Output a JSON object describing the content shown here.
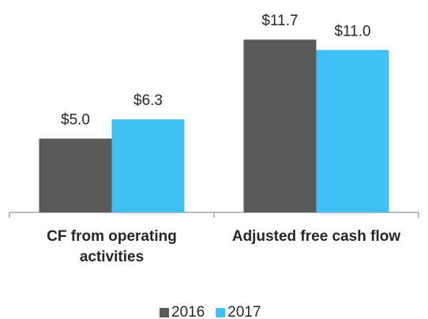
{
  "chart_data": {
    "type": "bar",
    "categories": [
      "CF from operating activities",
      "Adjusted free cash flow"
    ],
    "series": [
      {
        "name": "2016",
        "color": "#595959",
        "values": [
          5.0,
          11.7
        ],
        "value_labels": [
          "$5.0",
          "$11.7"
        ]
      },
      {
        "name": "2017",
        "color": "#3fbff2",
        "values": [
          6.3,
          11.0
        ],
        "value_labels": [
          "$6.3",
          "$11.0"
        ]
      }
    ],
    "legend": "bottom"
  }
}
